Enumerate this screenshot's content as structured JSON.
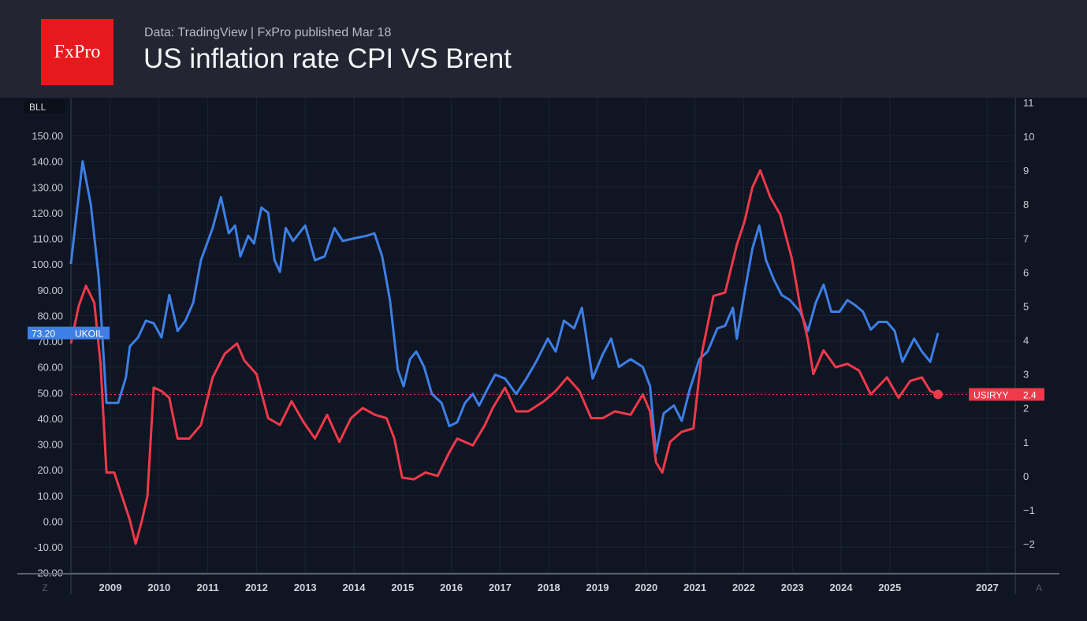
{
  "header": {
    "logo": "FxPro",
    "subtitle": "Data: TradingView | FxPro published Mar 18",
    "title": "US inflation rate CPI VS Brent"
  },
  "chart_data": {
    "type": "line",
    "title": "US inflation rate CPI VS Brent",
    "left_axis": {
      "unit_label": "BLL",
      "ylim": [
        -20,
        160
      ],
      "ticks": [
        -20,
        -10,
        0,
        10,
        20,
        30,
        40,
        50,
        60,
        70,
        80,
        90,
        100,
        110,
        120,
        130,
        140,
        150
      ]
    },
    "right_axis": {
      "ylim": [
        -2.7,
        11
      ],
      "ticks": [
        -2,
        -1,
        0,
        1,
        2,
        3,
        4,
        5,
        6,
        7,
        8,
        9,
        10,
        11
      ]
    },
    "x_ticks": [
      "2009",
      "2010",
      "2011",
      "2012",
      "2013",
      "2014",
      "2015",
      "2016",
      "2017",
      "2018",
      "2019",
      "2020",
      "2021",
      "2022",
      "2023",
      "2024",
      "2025",
      "2027"
    ],
    "xlim": [
      2008.2,
      2027.7
    ],
    "grid": true,
    "corner_labels": {
      "left": "Z",
      "right": "A"
    },
    "colors": {
      "brent": "#3d7fe6",
      "cpi": "#f0394a",
      "background": "#0f1522"
    },
    "series": [
      {
        "name": "UKOIL",
        "axis": "left",
        "last_label": "73.20",
        "color": "#3d7fe6",
        "points": [
          [
            2008.19,
            100
          ],
          [
            2008.43,
            140
          ],
          [
            2008.6,
            123
          ],
          [
            2008.76,
            95
          ],
          [
            2008.92,
            46
          ],
          [
            2009.16,
            46
          ],
          [
            2009.32,
            56
          ],
          [
            2009.4,
            68
          ],
          [
            2009.57,
            71.5
          ],
          [
            2009.73,
            78
          ],
          [
            2009.89,
            77
          ],
          [
            2010.05,
            71.5
          ],
          [
            2010.21,
            88
          ],
          [
            2010.38,
            74
          ],
          [
            2010.54,
            78
          ],
          [
            2010.7,
            85
          ],
          [
            2010.86,
            101.5
          ],
          [
            2011.1,
            114
          ],
          [
            2011.27,
            126
          ],
          [
            2011.43,
            112
          ],
          [
            2011.56,
            115
          ],
          [
            2011.67,
            103
          ],
          [
            2011.83,
            111
          ],
          [
            2011.95,
            108
          ],
          [
            2012.1,
            122
          ],
          [
            2012.24,
            120
          ],
          [
            2012.37,
            101.5
          ],
          [
            2012.48,
            97
          ],
          [
            2012.6,
            114
          ],
          [
            2012.75,
            109
          ],
          [
            2013.0,
            115
          ],
          [
            2013.2,
            101.5
          ],
          [
            2013.4,
            103
          ],
          [
            2013.6,
            114
          ],
          [
            2013.77,
            109
          ],
          [
            2014.0,
            110
          ],
          [
            2014.26,
            111
          ],
          [
            2014.42,
            112
          ],
          [
            2014.58,
            103
          ],
          [
            2014.74,
            86
          ],
          [
            2014.9,
            59
          ],
          [
            2015.02,
            52.5
          ],
          [
            2015.15,
            63
          ],
          [
            2015.28,
            66
          ],
          [
            2015.44,
            60
          ],
          [
            2015.6,
            49.5
          ],
          [
            2015.8,
            46
          ],
          [
            2015.96,
            37
          ],
          [
            2016.12,
            38.5
          ],
          [
            2016.28,
            46
          ],
          [
            2016.44,
            49.5
          ],
          [
            2016.57,
            45
          ],
          [
            2016.73,
            51
          ],
          [
            2016.9,
            57
          ],
          [
            2017.1,
            55.5
          ],
          [
            2017.33,
            49.5
          ],
          [
            2017.54,
            55.5
          ],
          [
            2017.74,
            62
          ],
          [
            2017.98,
            71
          ],
          [
            2018.14,
            66
          ],
          [
            2018.31,
            78
          ],
          [
            2018.52,
            75
          ],
          [
            2018.68,
            83
          ],
          [
            2018.9,
            55.5
          ],
          [
            2019.11,
            65
          ],
          [
            2019.28,
            71
          ],
          [
            2019.44,
            60
          ],
          [
            2019.68,
            63
          ],
          [
            2019.93,
            60
          ],
          [
            2020.08,
            52.5
          ],
          [
            2020.2,
            26.5
          ],
          [
            2020.36,
            42
          ],
          [
            2020.57,
            45
          ],
          [
            2020.73,
            39
          ],
          [
            2020.89,
            51
          ],
          [
            2021.09,
            63
          ],
          [
            2021.26,
            66
          ],
          [
            2021.46,
            75
          ],
          [
            2021.62,
            76
          ],
          [
            2021.78,
            83
          ],
          [
            2021.86,
            71
          ],
          [
            2022.02,
            89
          ],
          [
            2022.18,
            106
          ],
          [
            2022.32,
            115
          ],
          [
            2022.46,
            101.5
          ],
          [
            2022.62,
            94
          ],
          [
            2022.78,
            88
          ],
          [
            2022.95,
            86
          ],
          [
            2023.16,
            81.5
          ],
          [
            2023.32,
            74
          ],
          [
            2023.48,
            85
          ],
          [
            2023.64,
            92
          ],
          [
            2023.8,
            81.5
          ],
          [
            2023.97,
            81.5
          ],
          [
            2024.13,
            86
          ],
          [
            2024.29,
            84
          ],
          [
            2024.45,
            81.5
          ],
          [
            2024.61,
            74.5
          ],
          [
            2024.77,
            77.5
          ],
          [
            2024.94,
            77.5
          ],
          [
            2025.1,
            74
          ],
          [
            2025.26,
            62
          ],
          [
            2025.5,
            71
          ],
          [
            2025.66,
            66
          ],
          [
            2025.83,
            62
          ],
          [
            2025.99,
            73.2
          ]
        ]
      },
      {
        "name": "USIRYY",
        "axis": "right",
        "last_label": "2.4",
        "color": "#f0394a",
        "points": [
          [
            2008.19,
            3.9
          ],
          [
            2008.35,
            5.0
          ],
          [
            2008.5,
            5.6
          ],
          [
            2008.67,
            5.1
          ],
          [
            2008.8,
            3.3
          ],
          [
            2008.92,
            0.1
          ],
          [
            2009.08,
            0.1
          ],
          [
            2009.24,
            -0.6
          ],
          [
            2009.4,
            -1.3
          ],
          [
            2009.52,
            -2.0
          ],
          [
            2009.65,
            -1.3
          ],
          [
            2009.76,
            -0.6
          ],
          [
            2009.89,
            2.6
          ],
          [
            2010.05,
            2.5
          ],
          [
            2010.21,
            2.3
          ],
          [
            2010.38,
            1.1
          ],
          [
            2010.62,
            1.1
          ],
          [
            2010.86,
            1.5
          ],
          [
            2011.1,
            2.9
          ],
          [
            2011.35,
            3.6
          ],
          [
            2011.6,
            3.9
          ],
          [
            2011.75,
            3.4
          ],
          [
            2012.0,
            3.0
          ],
          [
            2012.24,
            1.7
          ],
          [
            2012.48,
            1.5
          ],
          [
            2012.72,
            2.2
          ],
          [
            2012.96,
            1.6
          ],
          [
            2013.2,
            1.1
          ],
          [
            2013.45,
            1.8
          ],
          [
            2013.7,
            1.0
          ],
          [
            2013.94,
            1.7
          ],
          [
            2014.18,
            2.0
          ],
          [
            2014.43,
            1.8
          ],
          [
            2014.67,
            1.7
          ],
          [
            2014.83,
            1.1
          ],
          [
            2014.99,
            -0.05
          ],
          [
            2015.23,
            -0.1
          ],
          [
            2015.47,
            0.1
          ],
          [
            2015.72,
            0.0
          ],
          [
            2015.96,
            0.7
          ],
          [
            2016.12,
            1.1
          ],
          [
            2016.44,
            0.9
          ],
          [
            2016.69,
            1.5
          ],
          [
            2016.85,
            2.0
          ],
          [
            2017.1,
            2.6
          ],
          [
            2017.33,
            1.9
          ],
          [
            2017.58,
            1.9
          ],
          [
            2017.9,
            2.2
          ],
          [
            2018.14,
            2.5
          ],
          [
            2018.38,
            2.9
          ],
          [
            2018.63,
            2.5
          ],
          [
            2018.87,
            1.7
          ],
          [
            2019.11,
            1.7
          ],
          [
            2019.36,
            1.9
          ],
          [
            2019.68,
            1.8
          ],
          [
            2019.93,
            2.4
          ],
          [
            2020.08,
            1.9
          ],
          [
            2020.2,
            0.4
          ],
          [
            2020.33,
            0.1
          ],
          [
            2020.49,
            1.0
          ],
          [
            2020.73,
            1.3
          ],
          [
            2020.97,
            1.4
          ],
          [
            2021.14,
            3.6
          ],
          [
            2021.38,
            5.3
          ],
          [
            2021.62,
            5.4
          ],
          [
            2021.86,
            6.8
          ],
          [
            2022.02,
            7.5
          ],
          [
            2022.18,
            8.5
          ],
          [
            2022.34,
            9.0
          ],
          [
            2022.55,
            8.2
          ],
          [
            2022.75,
            7.7
          ],
          [
            2022.99,
            6.4
          ],
          [
            2023.16,
            5.0
          ],
          [
            2023.32,
            4.0
          ],
          [
            2023.43,
            3.0
          ],
          [
            2023.64,
            3.7
          ],
          [
            2023.89,
            3.2
          ],
          [
            2024.13,
            3.3
          ],
          [
            2024.37,
            3.1
          ],
          [
            2024.61,
            2.4
          ],
          [
            2024.94,
            2.9
          ],
          [
            2025.18,
            2.3
          ],
          [
            2025.42,
            2.8
          ],
          [
            2025.66,
            2.9
          ],
          [
            2025.83,
            2.5
          ],
          [
            2025.99,
            2.4
          ]
        ]
      }
    ]
  }
}
